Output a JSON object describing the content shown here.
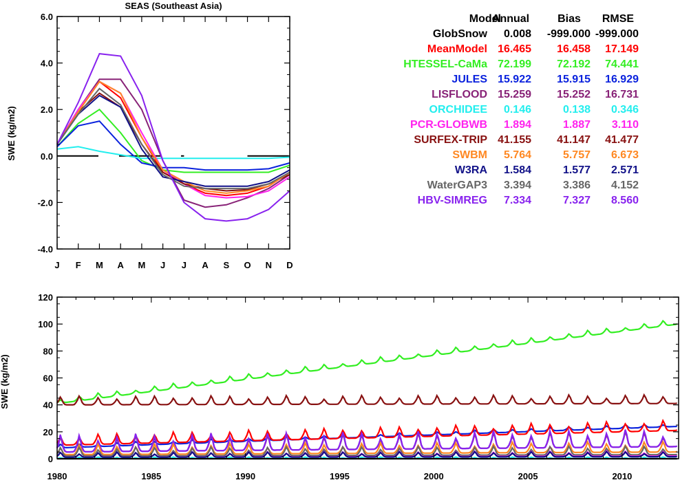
{
  "chart_data": [
    {
      "type": "line",
      "title": "SEAS (Southeast Asia)",
      "xlabel": "",
      "ylabel": "SWE (kg/m2)",
      "categories": [
        "J",
        "F",
        "M",
        "A",
        "M",
        "J",
        "J",
        "A",
        "S",
        "O",
        "N",
        "D"
      ],
      "ylim": [
        -4.0,
        6.0
      ],
      "yticks": [
        "-4.0",
        "-2.0",
        "0.0",
        "2.0",
        "4.0",
        "6.0"
      ],
      "grid": false,
      "legend_position": "right",
      "stats_table": {
        "headers": [
          "Model",
          "Annual",
          "Bias",
          "RMSE"
        ],
        "rows": [
          {
            "model": "GlobSnow",
            "annual": "0.008",
            "bias": "-999.000",
            "rmse": "-999.000",
            "color": "#000000"
          },
          {
            "model": "MeanModel",
            "annual": "16.465",
            "bias": "16.458",
            "rmse": "17.149",
            "color": "#ff0000"
          },
          {
            "model": "HTESSEL-CaMa",
            "annual": "72.199",
            "bias": "72.192",
            "rmse": "74.441",
            "color": "#33ee22"
          },
          {
            "model": "JULES",
            "annual": "15.922",
            "bias": "15.915",
            "rmse": "16.929",
            "color": "#0a22dd"
          },
          {
            "model": "LISFLOOD",
            "annual": "15.259",
            "bias": "15.252",
            "rmse": "16.731",
            "color": "#882277"
          },
          {
            "model": "ORCHIDEE",
            "annual": "0.146",
            "bias": "0.138",
            "rmse": "0.346",
            "color": "#22eeee"
          },
          {
            "model": "PCR-GLOBWB",
            "annual": "1.894",
            "bias": "1.887",
            "rmse": "3.110",
            "color": "#ff22ee"
          },
          {
            "model": "SURFEX-TRIP",
            "annual": "41.155",
            "bias": "41.147",
            "rmse": "41.477",
            "color": "#881111"
          },
          {
            "model": "SWBM",
            "annual": "5.764",
            "bias": "5.757",
            "rmse": "6.673",
            "color": "#ff8822"
          },
          {
            "model": "W3RA",
            "annual": "1.584",
            "bias": "1.577",
            "rmse": "2.571",
            "color": "#111188"
          },
          {
            "model": "WaterGAP3",
            "annual": "3.394",
            "bias": "3.386",
            "rmse": "4.152",
            "color": "#666666"
          },
          {
            "model": "HBV-SIMREG",
            "annual": "7.334",
            "bias": "7.327",
            "rmse": "8.560",
            "color": "#8822ee"
          }
        ]
      },
      "series": [
        {
          "name": "GlobSnow",
          "color": "#000000",
          "dashed": true,
          "values": [
            0.0,
            0.0,
            0.0,
            0.0,
            0.0,
            0.0,
            0.0,
            null,
            null,
            0.0,
            0.0,
            0.0
          ]
        },
        {
          "name": "MeanModel",
          "color": "#ff0000",
          "values": [
            0.5,
            1.9,
            3.2,
            2.5,
            0.8,
            -0.7,
            -1.2,
            -1.6,
            -1.7,
            -1.6,
            -1.3,
            -0.7
          ]
        },
        {
          "name": "HTESSEL-CaMa",
          "color": "#33ee22",
          "values": [
            0.4,
            1.4,
            2.0,
            1.0,
            -0.2,
            -0.6,
            -0.7,
            -0.7,
            -0.7,
            -0.7,
            -0.7,
            -0.4
          ]
        },
        {
          "name": "JULES",
          "color": "#0a22dd",
          "values": [
            0.4,
            1.3,
            1.5,
            0.5,
            -0.3,
            -0.5,
            -0.5,
            -0.6,
            -0.6,
            -0.6,
            -0.55,
            -0.3
          ]
        },
        {
          "name": "LISFLOOD",
          "color": "#882277",
          "values": [
            0.5,
            2.0,
            3.3,
            3.3,
            2.0,
            -0.2,
            -1.9,
            -2.2,
            -2.1,
            -1.8,
            -1.4,
            -0.8
          ]
        },
        {
          "name": "ORCHIDEE",
          "color": "#22eeee",
          "values": [
            0.3,
            0.4,
            0.2,
            0.05,
            -0.1,
            -0.1,
            -0.1,
            -0.1,
            -0.1,
            -0.1,
            -0.1,
            -0.05
          ]
        },
        {
          "name": "PCR-GLOBWB",
          "color": "#ff22ee",
          "values": [
            0.5,
            2.0,
            3.2,
            2.7,
            1.0,
            -0.6,
            -1.2,
            -1.7,
            -1.8,
            -1.75,
            -1.5,
            -0.9
          ]
        },
        {
          "name": "SURFEX-TRIP",
          "color": "#881111",
          "values": [
            0.5,
            1.9,
            2.7,
            2.1,
            0.5,
            -0.7,
            -1.2,
            -1.4,
            -1.5,
            -1.45,
            -1.2,
            -0.8
          ]
        },
        {
          "name": "SWBM",
          "color": "#ff8822",
          "values": [
            0.5,
            1.9,
            3.2,
            2.7,
            0.8,
            -0.6,
            -1.1,
            -1.5,
            -1.6,
            -1.5,
            -1.3,
            -0.7
          ]
        },
        {
          "name": "W3RA",
          "color": "#111188",
          "values": [
            0.5,
            1.8,
            2.6,
            2.1,
            0.3,
            -0.9,
            -1.1,
            -1.3,
            -1.3,
            -1.3,
            -1.1,
            -0.6
          ]
        },
        {
          "name": "WaterGAP3",
          "color": "#666666",
          "values": [
            0.5,
            1.8,
            2.9,
            2.2,
            0.5,
            -0.8,
            -1.3,
            -1.4,
            -1.4,
            -1.4,
            -1.2,
            -0.7
          ]
        },
        {
          "name": "HBV-SIMREG",
          "color": "#8822ee",
          "values": [
            0.5,
            2.3,
            4.4,
            4.3,
            2.6,
            -0.2,
            -2.0,
            -2.7,
            -2.8,
            -2.7,
            -2.3,
            -1.5
          ]
        }
      ]
    },
    {
      "type": "line",
      "title": "",
      "xlabel": "",
      "ylabel": "SWE (kg/m2)",
      "xlim": [
        1980,
        2013
      ],
      "ylim": [
        0,
        120
      ],
      "xticks": [
        "1980",
        "1985",
        "1990",
        "1995",
        "2000",
        "2005",
        "2010"
      ],
      "yticks": [
        "0",
        "20",
        "40",
        "60",
        "80",
        "100",
        "120"
      ],
      "grid": false,
      "series": [
        {
          "name": "HTESSEL-CaMa",
          "color": "#33ee22",
          "start": 41,
          "end": 100,
          "amp": 3
        },
        {
          "name": "SURFEX-TRIP",
          "color": "#881111",
          "start": 40,
          "end": 41,
          "amp": 5
        },
        {
          "name": "JULES",
          "color": "#0a22dd",
          "start": 8,
          "end": 24,
          "amp": 2
        },
        {
          "name": "MeanModel",
          "color": "#ff0000",
          "start": 10,
          "end": 21,
          "amp": 6
        },
        {
          "name": "LISFLOOD",
          "color": "#882277",
          "start": 5,
          "end": 9,
          "amp": 9
        },
        {
          "name": "HBV-SIMREG",
          "color": "#8822ee",
          "start": 5,
          "end": 9,
          "amp": 10
        },
        {
          "name": "SWBM",
          "color": "#ff8822",
          "start": 3,
          "end": 5,
          "amp": 6
        },
        {
          "name": "WaterGAP3",
          "color": "#666666",
          "start": 2,
          "end": 3,
          "amp": 5
        },
        {
          "name": "PCR-GLOBWB",
          "color": "#ff22ee",
          "start": 1,
          "end": 2,
          "amp": 3
        },
        {
          "name": "W3RA",
          "color": "#111188",
          "start": 1,
          "end": 1.5,
          "amp": 3
        },
        {
          "name": "ORCHIDEE",
          "color": "#22eeee",
          "start": 0,
          "end": 0,
          "amp": 1
        },
        {
          "name": "GlobSnow",
          "color": "#000000",
          "start": 0,
          "end": 0,
          "amp": 0
        }
      ]
    }
  ]
}
